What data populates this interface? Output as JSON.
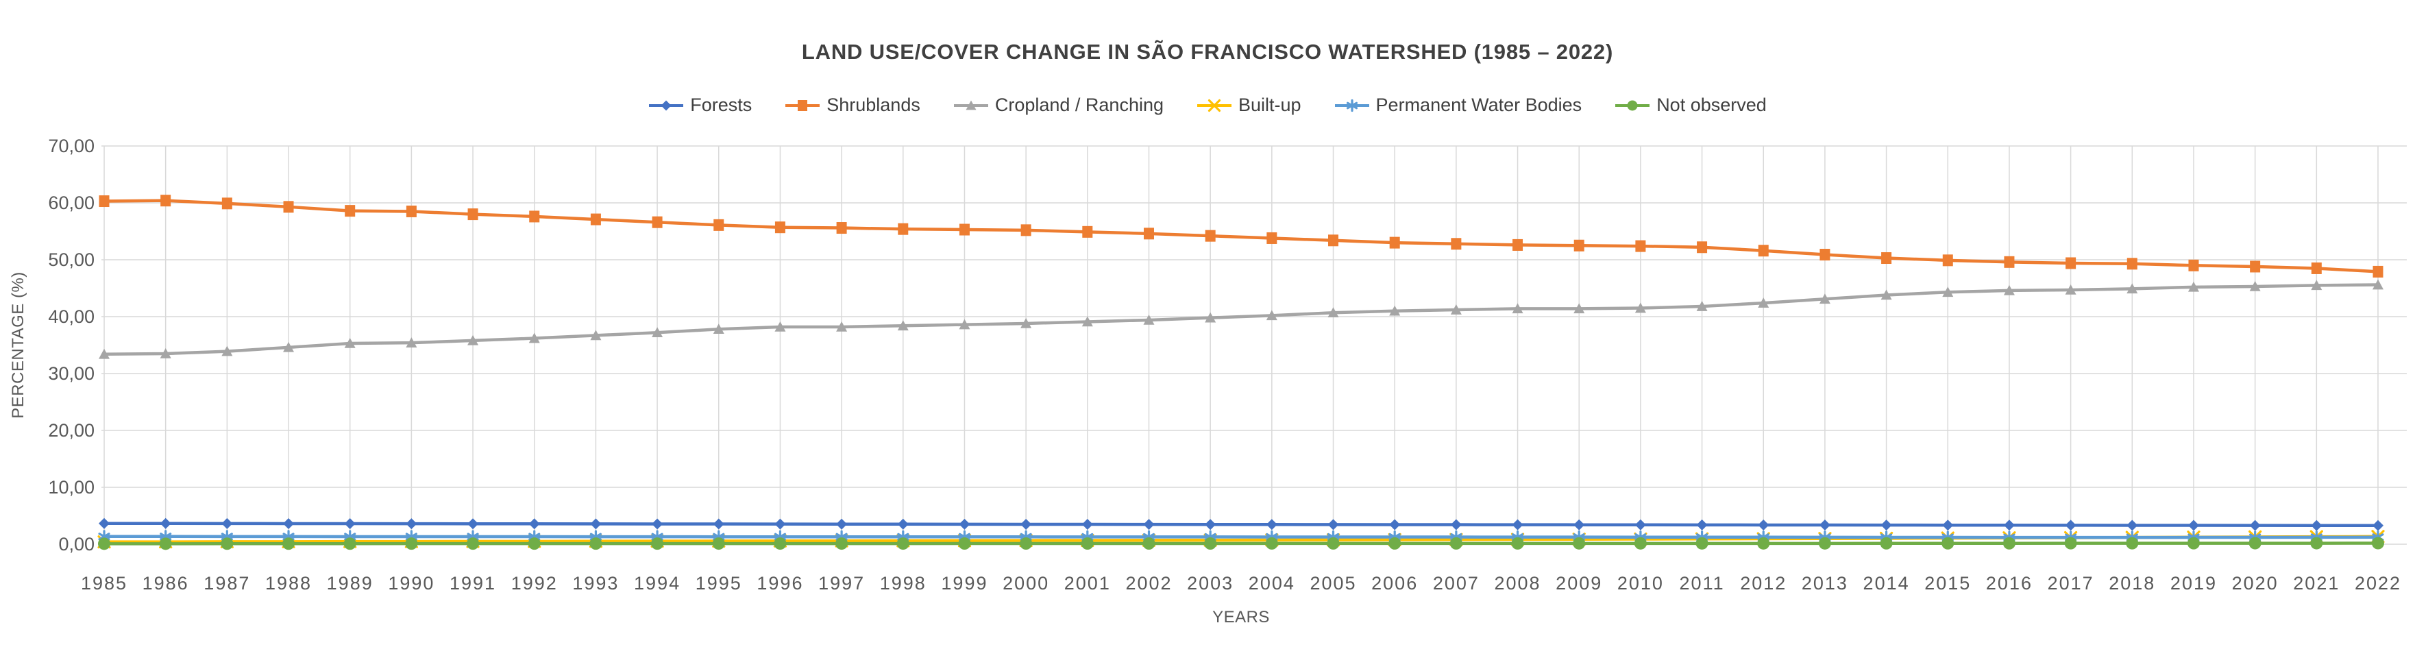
{
  "header": {
    "title": "LAND USE/COVER CHANGE IN SÃO FRANCISCO WATERSHED (1985 – 2022)"
  },
  "chart_data": {
    "type": "line",
    "title": "LAND USE/COVER CHANGE IN SÃO FRANCISCO WATERSHED (1985 – 2022)",
    "xlabel": "YEARS",
    "ylabel": "PERCENTAGE (%)",
    "ylim": [
      0,
      70
    ],
    "ytick_step": 10,
    "y_ticks": [
      "0,00",
      "10,00",
      "20,00",
      "30,00",
      "40,00",
      "50,00",
      "60,00",
      "70,00"
    ],
    "grid": true,
    "legend_position": "top",
    "decimal_separator": ",",
    "categories": [
      "1985",
      "1986",
      "1987",
      "1988",
      "1989",
      "1990",
      "1991",
      "1992",
      "1993",
      "1994",
      "1995",
      "1996",
      "1997",
      "1998",
      "1999",
      "2000",
      "2001",
      "2002",
      "2003",
      "2004",
      "2005",
      "2006",
      "2007",
      "2008",
      "2009",
      "2010",
      "2011",
      "2012",
      "2013",
      "2014",
      "2015",
      "2016",
      "2017",
      "2018",
      "2019",
      "2020",
      "2021",
      "2022"
    ],
    "series": [
      {
        "name": "Forests",
        "color": "#4472C4",
        "marker": "diamond",
        "values": [
          3.65,
          3.64,
          3.63,
          3.62,
          3.61,
          3.6,
          3.59,
          3.58,
          3.57,
          3.56,
          3.55,
          3.54,
          3.53,
          3.52,
          3.51,
          3.5,
          3.49,
          3.48,
          3.47,
          3.46,
          3.45,
          3.44,
          3.43,
          3.42,
          3.41,
          3.4,
          3.39,
          3.38,
          3.37,
          3.36,
          3.35,
          3.34,
          3.33,
          3.32,
          3.31,
          3.3,
          3.29,
          3.28
        ]
      },
      {
        "name": "Shrublands",
        "color": "#ED7D31",
        "marker": "square",
        "values": [
          60.3,
          60.4,
          59.9,
          59.3,
          58.6,
          58.5,
          58.0,
          57.6,
          57.1,
          56.6,
          56.1,
          55.7,
          55.6,
          55.4,
          55.3,
          55.2,
          54.9,
          54.6,
          54.2,
          53.8,
          53.4,
          53.0,
          52.8,
          52.6,
          52.5,
          52.4,
          52.2,
          51.6,
          50.9,
          50.3,
          49.9,
          49.6,
          49.4,
          49.3,
          49.0,
          48.8,
          48.5,
          47.9
        ]
      },
      {
        "name": "Cropland / Ranching",
        "color": "#A5A5A5",
        "marker": "triangle",
        "values": [
          33.4,
          33.5,
          33.9,
          34.6,
          35.3,
          35.4,
          35.8,
          36.2,
          36.7,
          37.2,
          37.8,
          38.2,
          38.2,
          38.4,
          38.6,
          38.8,
          39.1,
          39.4,
          39.8,
          40.2,
          40.7,
          41.0,
          41.2,
          41.4,
          41.4,
          41.5,
          41.8,
          42.4,
          43.1,
          43.8,
          44.3,
          44.6,
          44.7,
          44.9,
          45.2,
          45.3,
          45.5,
          45.6
        ]
      },
      {
        "name": "Built-up",
        "color": "#FFC000",
        "marker": "x",
        "values": [
          0.4,
          0.41,
          0.43,
          0.44,
          0.46,
          0.47,
          0.49,
          0.5,
          0.52,
          0.54,
          0.55,
          0.57,
          0.59,
          0.61,
          0.63,
          0.65,
          0.67,
          0.69,
          0.71,
          0.74,
          0.76,
          0.79,
          0.81,
          0.84,
          0.87,
          0.9,
          0.93,
          0.96,
          0.99,
          1.03,
          1.07,
          1.11,
          1.15,
          1.19,
          1.23,
          1.27,
          1.31,
          1.35
        ]
      },
      {
        "name": "Permanent Water Bodies",
        "color": "#5B9BD5",
        "marker": "asterisk",
        "values": [
          1.35,
          1.35,
          1.34,
          1.34,
          1.33,
          1.33,
          1.32,
          1.32,
          1.31,
          1.31,
          1.3,
          1.3,
          1.3,
          1.29,
          1.29,
          1.29,
          1.28,
          1.28,
          1.28,
          1.27,
          1.27,
          1.26,
          1.26,
          1.25,
          1.25,
          1.24,
          1.24,
          1.23,
          1.22,
          1.21,
          1.2,
          1.19,
          1.19,
          1.19,
          1.2,
          1.21,
          1.22,
          1.23
        ]
      },
      {
        "name": "Not observed",
        "color": "#70AD47",
        "marker": "circle",
        "values": [
          0.08,
          0.08,
          0.09,
          0.09,
          0.09,
          0.1,
          0.1,
          0.1,
          0.1,
          0.1,
          0.11,
          0.11,
          0.11,
          0.11,
          0.12,
          0.12,
          0.12,
          0.12,
          0.12,
          0.13,
          0.13,
          0.13,
          0.13,
          0.13,
          0.14,
          0.14,
          0.14,
          0.14,
          0.14,
          0.15,
          0.15,
          0.15,
          0.16,
          0.16,
          0.16,
          0.17,
          0.17,
          0.18
        ]
      }
    ],
    "layout": {
      "plot_left": 152,
      "plot_right": 3470,
      "plot_top": 213,
      "plot_bottom": 794,
      "grid_x_start": 148,
      "grid_x_end": 3512,
      "gridline_color": "#D9D9D9",
      "tick_label_color": "#595959",
      "text_color": "#404040"
    }
  }
}
